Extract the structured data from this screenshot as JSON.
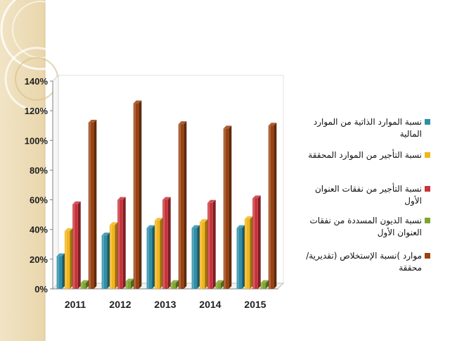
{
  "chart_data": {
    "type": "bar",
    "categories": [
      "2011",
      "2012",
      "2013",
      "2014",
      "2015"
    ],
    "ylim": [
      0,
      140
    ],
    "yticks": [
      0,
      20,
      40,
      60,
      80,
      100,
      120,
      140
    ],
    "ytick_suffix": "%",
    "grid": false,
    "legend_position": "right",
    "series": [
      {
        "name": "نسبة الموارد  الذاتية من الموارد المالية",
        "color": "#2E8FA8",
        "values": [
          22,
          36,
          41,
          41,
          41
        ]
      },
      {
        "name": "نسبة التأجير من الموارد المحققة",
        "color": "#F2B51C",
        "values": [
          39,
          43,
          46,
          45,
          47
        ]
      },
      {
        "name": "نسبة التأجير من نفقات العنوان الأول",
        "color": "#C8323A",
        "values": [
          57,
          60,
          60,
          58,
          61
        ]
      },
      {
        "name": "نسبة الديون المسددة من نفقات العنوان الأول",
        "color": "#7FA531",
        "values": [
          4,
          5,
          4,
          4,
          4
        ]
      },
      {
        "name": "موارد )نسبة الإستخلاص (تقديرية/محققة",
        "color": "#9A4210",
        "values": [
          112,
          125,
          111,
          108,
          110
        ]
      }
    ]
  }
}
